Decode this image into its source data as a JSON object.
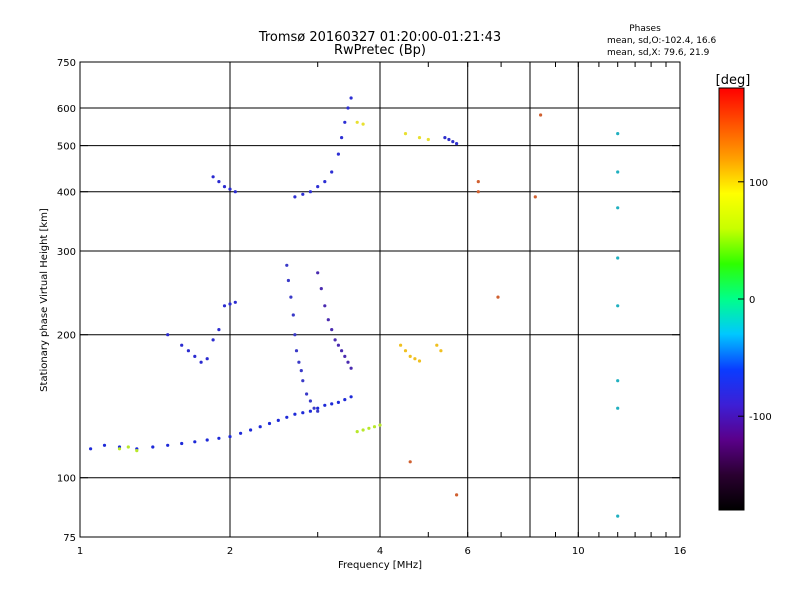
{
  "title": "Tromsø 20160327 01:20:00-01:21:43",
  "subtitle": "RwPretec (Bp)",
  "stats": {
    "heading": "Phases",
    "line_o": "mean, sd,O:-102.4, 16.6",
    "line_x": "mean, sd,X:  79.6, 21.9"
  },
  "chart_data": {
    "type": "scatter",
    "xlabel": "Frequency [MHz]",
    "ylabel": "Stationary phase Virtual Height [km]",
    "x_scale": "log",
    "y_scale": "log",
    "xlim": [
      1,
      16
    ],
    "ylim": [
      75,
      750
    ],
    "x_ticks": [
      1,
      2,
      4,
      6,
      10,
      16
    ],
    "x_gridlines": [
      2,
      4,
      6,
      8,
      10
    ],
    "y_ticks": [
      75,
      100,
      200,
      300,
      400,
      500,
      600,
      750
    ],
    "y_gridlines": [
      100,
      200,
      300,
      400,
      500,
      600
    ],
    "grid": true,
    "colorbar": {
      "label": "[deg]",
      "range": [
        -180,
        180
      ],
      "ticks": [
        100,
        0,
        -100
      ],
      "stops": [
        "#000000",
        "#2a0030",
        "#5a008a",
        "#3c1fd6",
        "#0a3cff",
        "#00c8ff",
        "#00ff8a",
        "#2eff00",
        "#c8ff00",
        "#ffff00",
        "#ffa000",
        "#ff5000",
        "#ff0000"
      ]
    },
    "traces": [
      {
        "name": "",
        "color": "#1e2ad8",
        "points": [
          [
            1.05,
            115
          ],
          [
            1.12,
            117
          ],
          [
            1.2,
            116
          ],
          [
            1.3,
            115
          ],
          [
            1.4,
            116
          ],
          [
            1.5,
            117
          ],
          [
            1.6,
            118
          ],
          [
            1.7,
            119
          ],
          [
            1.8,
            120
          ],
          [
            1.9,
            121
          ],
          [
            2.0,
            122
          ],
          [
            2.1,
            124
          ],
          [
            2.2,
            126
          ],
          [
            2.3,
            128
          ],
          [
            2.4,
            130
          ],
          [
            2.5,
            132
          ],
          [
            2.6,
            134
          ],
          [
            2.7,
            136
          ],
          [
            2.8,
            137
          ],
          [
            2.9,
            138
          ],
          [
            3.0,
            140
          ],
          [
            3.1,
            142
          ],
          [
            3.2,
            143
          ],
          [
            3.3,
            144
          ],
          [
            3.4,
            146
          ],
          [
            3.5,
            148
          ]
        ]
      },
      {
        "name": "",
        "color": "#b8e82a",
        "points": [
          [
            3.6,
            125
          ],
          [
            3.7,
            126
          ],
          [
            3.8,
            127
          ],
          [
            3.9,
            128
          ],
          [
            4.0,
            129
          ],
          [
            1.2,
            115
          ],
          [
            1.25,
            116
          ],
          [
            1.3,
            114
          ]
        ]
      },
      {
        "name": "",
        "color": "#2b2bd0",
        "points": [
          [
            1.5,
            200
          ],
          [
            1.6,
            190
          ],
          [
            1.65,
            185
          ],
          [
            1.7,
            180
          ],
          [
            1.75,
            175
          ],
          [
            1.8,
            178
          ],
          [
            1.85,
            195
          ],
          [
            1.9,
            205
          ],
          [
            1.95,
            230
          ],
          [
            2.0,
            232
          ],
          [
            2.05,
            234
          ]
        ]
      },
      {
        "name": "",
        "color": "#3a3ac8",
        "points": [
          [
            2.6,
            280
          ],
          [
            2.62,
            260
          ],
          [
            2.65,
            240
          ],
          [
            2.68,
            220
          ],
          [
            2.7,
            200
          ],
          [
            2.72,
            185
          ],
          [
            2.75,
            175
          ],
          [
            2.78,
            168
          ],
          [
            2.8,
            160
          ],
          [
            2.85,
            150
          ],
          [
            2.9,
            145
          ],
          [
            2.95,
            140
          ],
          [
            3.0,
            138
          ]
        ]
      },
      {
        "name": "",
        "color": "#4a2bb0",
        "points": [
          [
            3.0,
            270
          ],
          [
            3.05,
            250
          ],
          [
            3.1,
            230
          ],
          [
            3.15,
            215
          ],
          [
            3.2,
            205
          ],
          [
            3.25,
            195
          ],
          [
            3.3,
            190
          ],
          [
            3.35,
            185
          ],
          [
            3.4,
            180
          ],
          [
            3.45,
            175
          ],
          [
            3.5,
            170
          ]
        ]
      },
      {
        "name": "",
        "color": "#2d2fd4",
        "points": [
          [
            2.7,
            390
          ],
          [
            2.8,
            395
          ],
          [
            2.9,
            400
          ],
          [
            3.0,
            410
          ],
          [
            3.1,
            420
          ],
          [
            3.2,
            440
          ],
          [
            3.3,
            480
          ],
          [
            3.35,
            520
          ],
          [
            3.4,
            560
          ],
          [
            3.45,
            600
          ],
          [
            3.5,
            630
          ]
        ]
      },
      {
        "name": "",
        "color": "#2a2ad0",
        "points": [
          [
            1.85,
            430
          ],
          [
            1.9,
            420
          ],
          [
            1.95,
            410
          ],
          [
            2.0,
            405
          ],
          [
            2.05,
            400
          ]
        ]
      },
      {
        "name": "",
        "color": "#f0c020",
        "points": [
          [
            4.4,
            190
          ],
          [
            4.5,
            185
          ],
          [
            4.6,
            180
          ],
          [
            4.7,
            178
          ],
          [
            4.8,
            176
          ],
          [
            5.2,
            190
          ],
          [
            5.3,
            185
          ]
        ]
      },
      {
        "name": "",
        "color": "#2f30cc",
        "points": [
          [
            5.4,
            520
          ],
          [
            5.5,
            515
          ],
          [
            5.6,
            510
          ],
          [
            5.7,
            505
          ]
        ]
      },
      {
        "name": "",
        "color": "#e8e030",
        "points": [
          [
            3.6,
            560
          ],
          [
            3.7,
            555
          ],
          [
            4.5,
            530
          ],
          [
            4.8,
            520
          ],
          [
            5.0,
            515
          ]
        ]
      },
      {
        "name": "",
        "color": "#d06030",
        "points": [
          [
            6.3,
            420
          ],
          [
            6.3,
            400
          ],
          [
            4.6,
            108
          ],
          [
            5.7,
            92
          ],
          [
            6.9,
            240
          ],
          [
            8.4,
            580
          ],
          [
            8.2,
            390
          ]
        ]
      },
      {
        "name": "",
        "color": "#20b0c0",
        "points": [
          [
            12.0,
            530
          ],
          [
            12.0,
            440
          ],
          [
            12.0,
            370
          ],
          [
            12.0,
            290
          ],
          [
            12.0,
            230
          ],
          [
            12.0,
            160
          ],
          [
            12.0,
            140
          ],
          [
            12.0,
            83
          ]
        ]
      }
    ]
  }
}
